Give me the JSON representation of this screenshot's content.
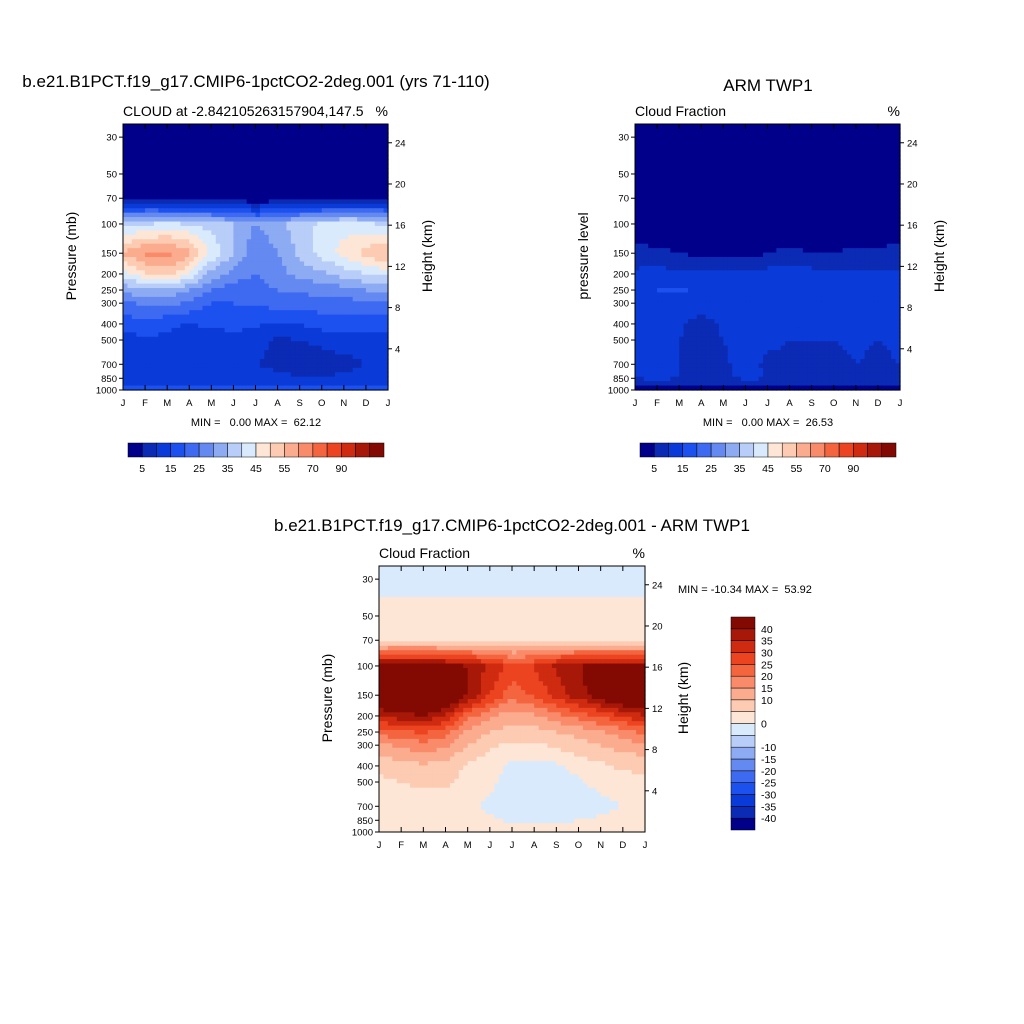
{
  "months": [
    "J",
    "F",
    "M",
    "A",
    "M",
    "J",
    "J",
    "A",
    "S",
    "O",
    "N",
    "D",
    "J"
  ],
  "pressure_ticks": [
    30,
    50,
    70,
    100,
    150,
    200,
    250,
    300,
    400,
    500,
    700,
    850,
    1000
  ],
  "height_ticks": [
    4,
    8,
    12,
    16,
    20,
    24
  ],
  "panel1": {
    "main_title": "b.e21.B1PCT.f19_g17.CMIP6-1pctCO2-2deg.001 (yrs 71-110)",
    "left_title": "CLOUD at -2.842105263157904,147.5",
    "right_title": "%",
    "ylabel": "Pressure (mb)",
    "y2label": "Height (km)",
    "minmax": "MIN =   0.00 MAX =  62.12"
  },
  "panel2": {
    "main_title": "ARM TWP1",
    "left_title": "Cloud Fraction",
    "right_title": "%",
    "ylabel": "pressure level",
    "y2label": "Height (km)",
    "minmax": "MIN =   0.00 MAX =  26.53"
  },
  "panel3": {
    "main_title": "b.e21.B1PCT.f19_g17.CMIP6-1pctCO2-2deg.001 - ARM TWP1",
    "left_title": "Cloud Fraction",
    "right_title": "%",
    "ylabel": "Pressure (mb)",
    "y2label": "Height (km)",
    "minmax": "MIN = -10.34 MAX =  53.92"
  },
  "abs_colorbar": {
    "colors": [
      "#00008b",
      "#0b2bb5",
      "#0a3ad8",
      "#1c50ef",
      "#3d6af0",
      "#6489f0",
      "#8cabf3",
      "#b8cdf8",
      "#daeafd",
      "#fde6d6",
      "#fccbb2",
      "#fbac8e",
      "#f98a6a",
      "#f4653f",
      "#ec4421",
      "#cf2b10",
      "#a81808",
      "#830a02"
    ],
    "labels": [
      "5",
      "15",
      "25",
      "35",
      "45",
      "55",
      "70",
      "90"
    ]
  },
  "diff_colorbar": {
    "colors": [
      "#00008b",
      "#0b2bb5",
      "#0a3ad8",
      "#1c50ef",
      "#3d6af0",
      "#6489f0",
      "#8cabf3",
      "#b8cdf8",
      "#daeafd",
      "#fde6d6",
      "#fccbb2",
      "#fbac8e",
      "#f98a6a",
      "#f4653f",
      "#ec4421",
      "#cf2b10",
      "#a81808",
      "#830a02"
    ],
    "labels": [
      "40",
      "35",
      "30",
      "25",
      "20",
      "15",
      "10",
      "0",
      "-10",
      "-15",
      "-20",
      "-25",
      "-30",
      "-35",
      "-40"
    ]
  },
  "chart_data": [
    {
      "type": "heatmap",
      "title": "b.e21.B1PCT.f19_g17.CMIP6-1pctCO2-2deg.001 (yrs 71-110)",
      "subtitle": "CLOUD at -2.842105263157904,147.5",
      "units": "%",
      "xlabel": "",
      "ylabel": "Pressure (mb)",
      "y2label": "Height (km)",
      "x": [
        "J",
        "F",
        "M",
        "A",
        "M",
        "J",
        "J",
        "A",
        "S",
        "O",
        "N",
        "D",
        "J"
      ],
      "y": [
        30,
        50,
        70,
        100,
        150,
        200,
        250,
        300,
        400,
        500,
        700,
        850,
        1000
      ],
      "z": [
        [
          0,
          0,
          0,
          0,
          0,
          0,
          0,
          0,
          0,
          0,
          0,
          0,
          0
        ],
        [
          0,
          0,
          0,
          0,
          0,
          0,
          0,
          0,
          0,
          0,
          0,
          0,
          0
        ],
        [
          3,
          2,
          1,
          1,
          1,
          1,
          1,
          1,
          1,
          1,
          1,
          2,
          3
        ],
        [
          38,
          40,
          41,
          40,
          38,
          35,
          30,
          33,
          38,
          41,
          43,
          42,
          38
        ],
        [
          56,
          61,
          62,
          57,
          44,
          35,
          26,
          30,
          36,
          42,
          47,
          52,
          56
        ],
        [
          42,
          49,
          52,
          45,
          33,
          28,
          25,
          28,
          32,
          34,
          37,
          40,
          42
        ],
        [
          32,
          34,
          34,
          30,
          25,
          22,
          23,
          25,
          26,
          27,
          28,
          30,
          32
        ],
        [
          24,
          26,
          27,
          24,
          20,
          20,
          21,
          22,
          22,
          23,
          23,
          24,
          24
        ],
        [
          17,
          18,
          16,
          15,
          16,
          17,
          16,
          14,
          15,
          17,
          17,
          17,
          17
        ],
        [
          13,
          14,
          14,
          12,
          12,
          13,
          12,
          9,
          10,
          12,
          13,
          13,
          13
        ],
        [
          11,
          11,
          11,
          10,
          10,
          11,
          10,
          9,
          6,
          6,
          8,
          10,
          11
        ],
        [
          13,
          12,
          11,
          11,
          12,
          12,
          11,
          11,
          11,
          11,
          11,
          12,
          13
        ],
        [
          16,
          16,
          16,
          16,
          16,
          16,
          16,
          16,
          16,
          16,
          16,
          16,
          16
        ]
      ],
      "min": 0.0,
      "max": 62.12
    },
    {
      "type": "heatmap",
      "title": "ARM TWP1",
      "subtitle": "Cloud Fraction",
      "units": "%",
      "xlabel": "",
      "ylabel": "pressure level",
      "y2label": "Height (km)",
      "x": [
        "J",
        "F",
        "M",
        "A",
        "M",
        "J",
        "J",
        "A",
        "S",
        "O",
        "N",
        "D",
        "J"
      ],
      "y": [
        30,
        50,
        70,
        100,
        150,
        200,
        250,
        300,
        400,
        500,
        700,
        850,
        1000
      ],
      "z": [
        [
          0,
          0,
          0,
          0,
          0,
          0,
          0,
          0,
          0,
          0,
          0,
          0,
          0
        ],
        [
          0,
          0,
          0,
          0,
          0,
          0,
          0,
          0,
          0,
          0,
          0,
          0,
          0
        ],
        [
          0,
          0,
          0,
          0,
          0,
          0,
          0,
          0,
          0,
          0,
          0,
          0,
          0
        ],
        [
          1,
          1,
          1,
          1,
          1,
          1,
          1,
          1,
          1,
          1,
          1,
          1,
          1
        ],
        [
          7,
          6,
          5,
          4,
          4,
          3,
          5,
          6,
          5,
          5,
          6,
          6,
          7
        ],
        [
          11,
          12,
          11,
          11,
          12,
          11,
          12,
          13,
          12,
          11,
          11,
          11,
          11
        ],
        [
          12,
          15,
          16,
          14,
          12,
          13,
          15,
          14,
          13,
          14,
          13,
          12,
          12
        ],
        [
          12,
          14,
          13,
          13,
          11,
          14,
          14,
          14,
          12,
          13,
          14,
          12,
          12
        ],
        [
          12,
          12,
          11,
          8,
          11,
          14,
          12,
          11,
          11,
          10,
          11,
          12,
          12
        ],
        [
          11,
          12,
          10,
          7,
          10,
          13,
          11,
          10,
          10,
          10,
          11,
          10,
          11
        ],
        [
          10,
          11,
          10,
          6,
          9,
          12,
          9,
          9,
          7,
          8,
          10,
          9,
          10
        ],
        [
          10,
          11,
          10,
          9,
          9,
          11,
          10,
          9,
          8,
          9,
          10,
          10,
          10
        ],
        [
          3,
          3,
          3,
          3,
          3,
          3,
          3,
          3,
          3,
          3,
          3,
          3,
          3
        ]
      ],
      "min": 0.0,
      "max": 26.53
    },
    {
      "type": "heatmap",
      "title": "b.e21.B1PCT.f19_g17.CMIP6-1pctCO2-2deg.001 - ARM TWP1",
      "subtitle": "Cloud Fraction",
      "units": "%",
      "xlabel": "",
      "ylabel": "Pressure (mb)",
      "y2label": "Height (km)",
      "x": [
        "J",
        "F",
        "M",
        "A",
        "M",
        "J",
        "J",
        "A",
        "S",
        "O",
        "N",
        "D",
        "J"
      ],
      "y": [
        30,
        50,
        70,
        100,
        150,
        200,
        250,
        300,
        400,
        500,
        700,
        850,
        1000
      ],
      "z": [
        [
          -2,
          -2,
          -2,
          -2,
          -2,
          -2,
          -2,
          -2,
          -2,
          -2,
          -2,
          -2,
          -2
        ],
        [
          2,
          2,
          2,
          2,
          2,
          2,
          2,
          2,
          2,
          2,
          2,
          2,
          2
        ],
        [
          3,
          3,
          3,
          3,
          3,
          3,
          3,
          3,
          3,
          3,
          3,
          3,
          3
        ],
        [
          42,
          44,
          44,
          42,
          40,
          34,
          28,
          30,
          36,
          40,
          42,
          42,
          42
        ],
        [
          50,
          52,
          53,
          50,
          40,
          30,
          22,
          26,
          32,
          38,
          44,
          50,
          50
        ],
        [
          35,
          38,
          40,
          35,
          22,
          16,
          12,
          14,
          18,
          22,
          26,
          30,
          35
        ],
        [
          22,
          24,
          26,
          22,
          14,
          10,
          8,
          8,
          10,
          12,
          14,
          18,
          22
        ],
        [
          14,
          16,
          18,
          16,
          10,
          6,
          4,
          4,
          6,
          8,
          10,
          12,
          14
        ],
        [
          6,
          8,
          9,
          8,
          4,
          2,
          -1,
          -2,
          -1,
          2,
          4,
          6,
          6
        ],
        [
          4,
          5,
          6,
          6,
          3,
          1,
          -2,
          -3,
          -2,
          -1,
          2,
          3,
          4
        ],
        [
          2,
          2,
          3,
          2,
          1,
          -1,
          -3,
          -4,
          -5,
          -4,
          -2,
          0,
          2
        ],
        [
          3,
          3,
          3,
          3,
          2,
          1,
          -1,
          -1,
          -1,
          0,
          1,
          2,
          3
        ],
        [
          2,
          2,
          2,
          2,
          2,
          2,
          2,
          2,
          2,
          2,
          2,
          2,
          2
        ]
      ],
      "min": -10.34,
      "max": 53.92
    }
  ]
}
